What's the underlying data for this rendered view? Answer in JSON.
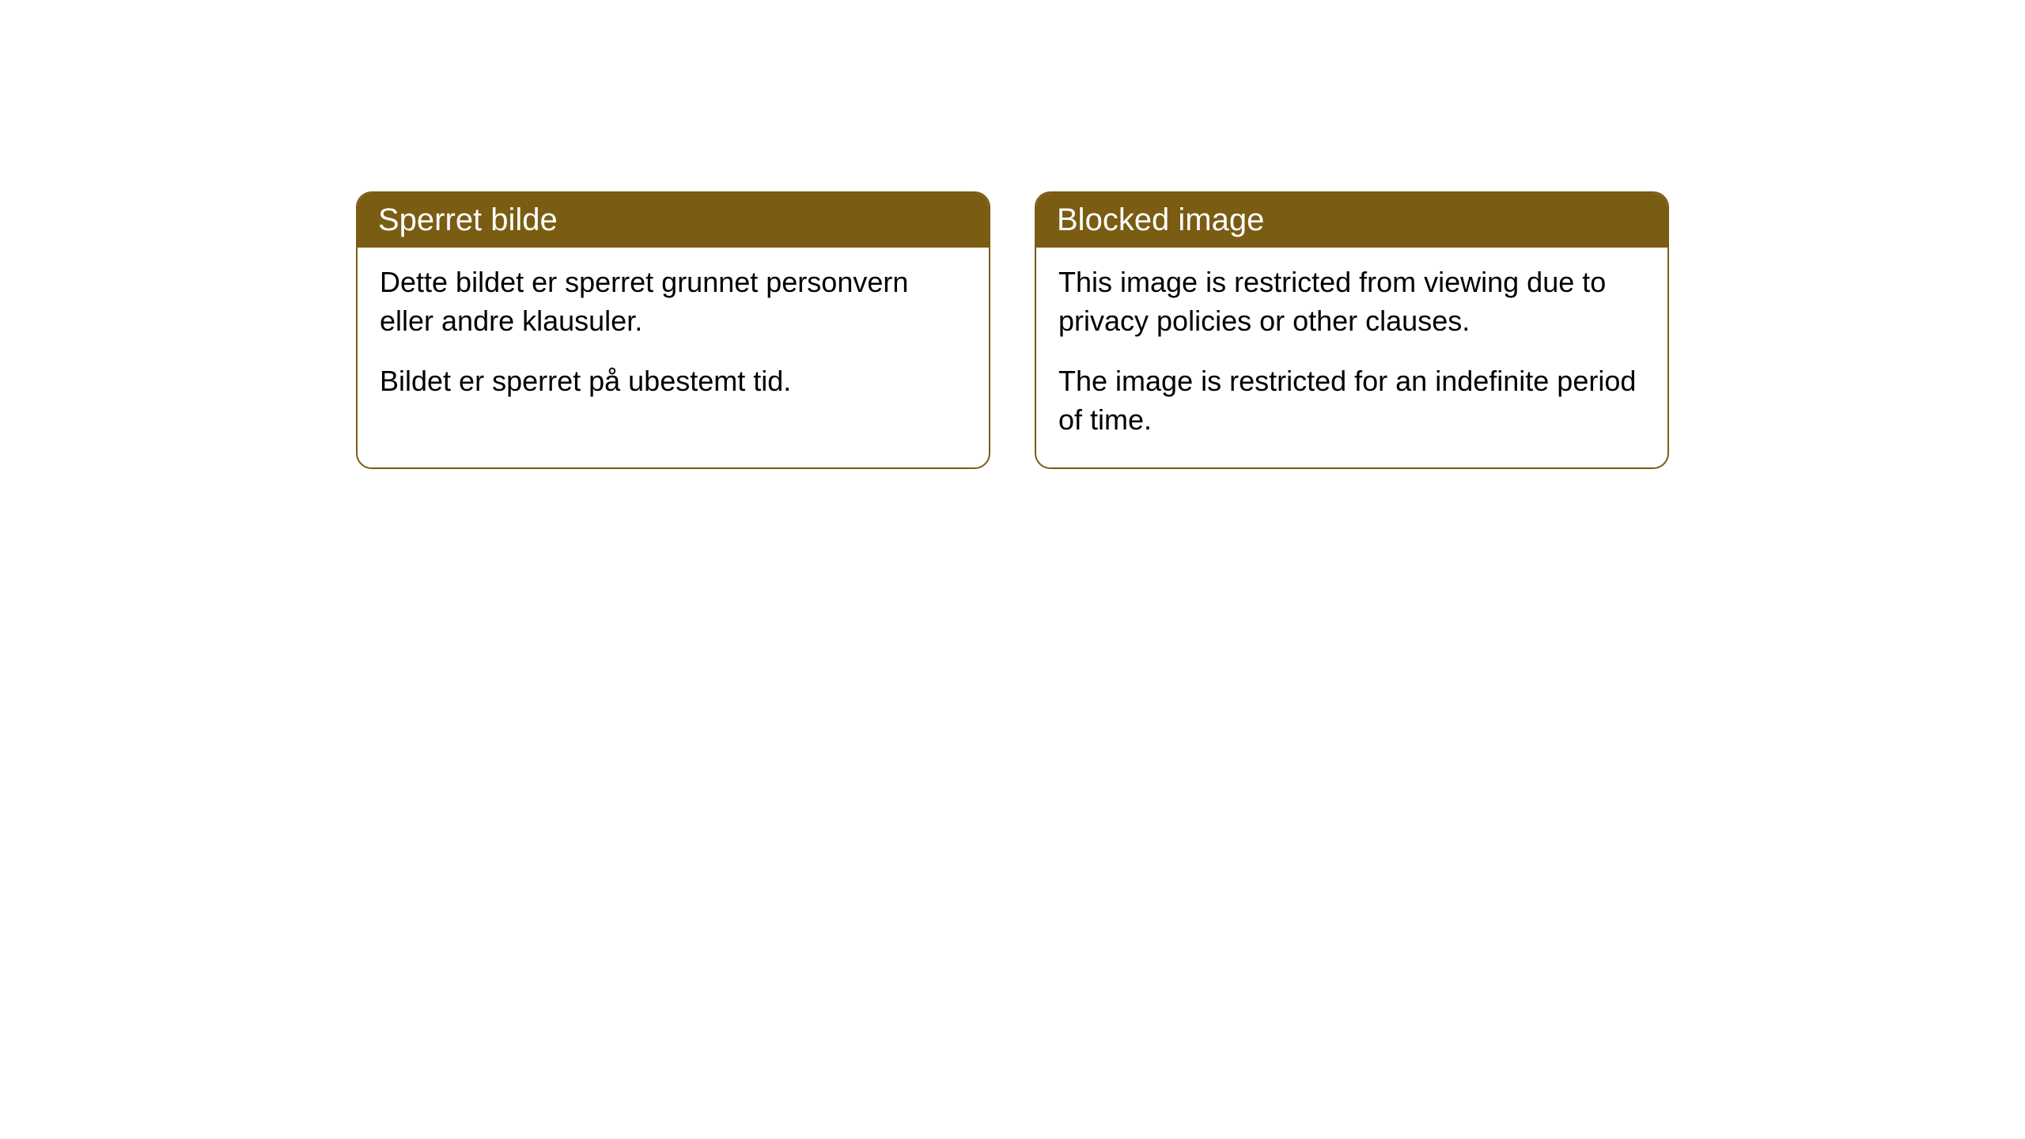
{
  "cards": [
    {
      "title": "Sperret bilde",
      "paragraph1": "Dette bildet er sperret grunnet personvern eller andre klausuler.",
      "paragraph2": "Bildet er sperret på ubestemt tid."
    },
    {
      "title": "Blocked image",
      "paragraph1": "This image is restricted from viewing due to privacy policies or other clauses.",
      "paragraph2": "The image is restricted for an indefinite period of time."
    }
  ],
  "style": {
    "header_background": "#7a5c13",
    "header_text_color": "#ffffff",
    "border_color": "#7a5c13",
    "body_background": "#ffffff",
    "body_text_color": "#000000",
    "border_radius": "20px",
    "header_fontsize": 40,
    "body_fontsize": 36
  }
}
